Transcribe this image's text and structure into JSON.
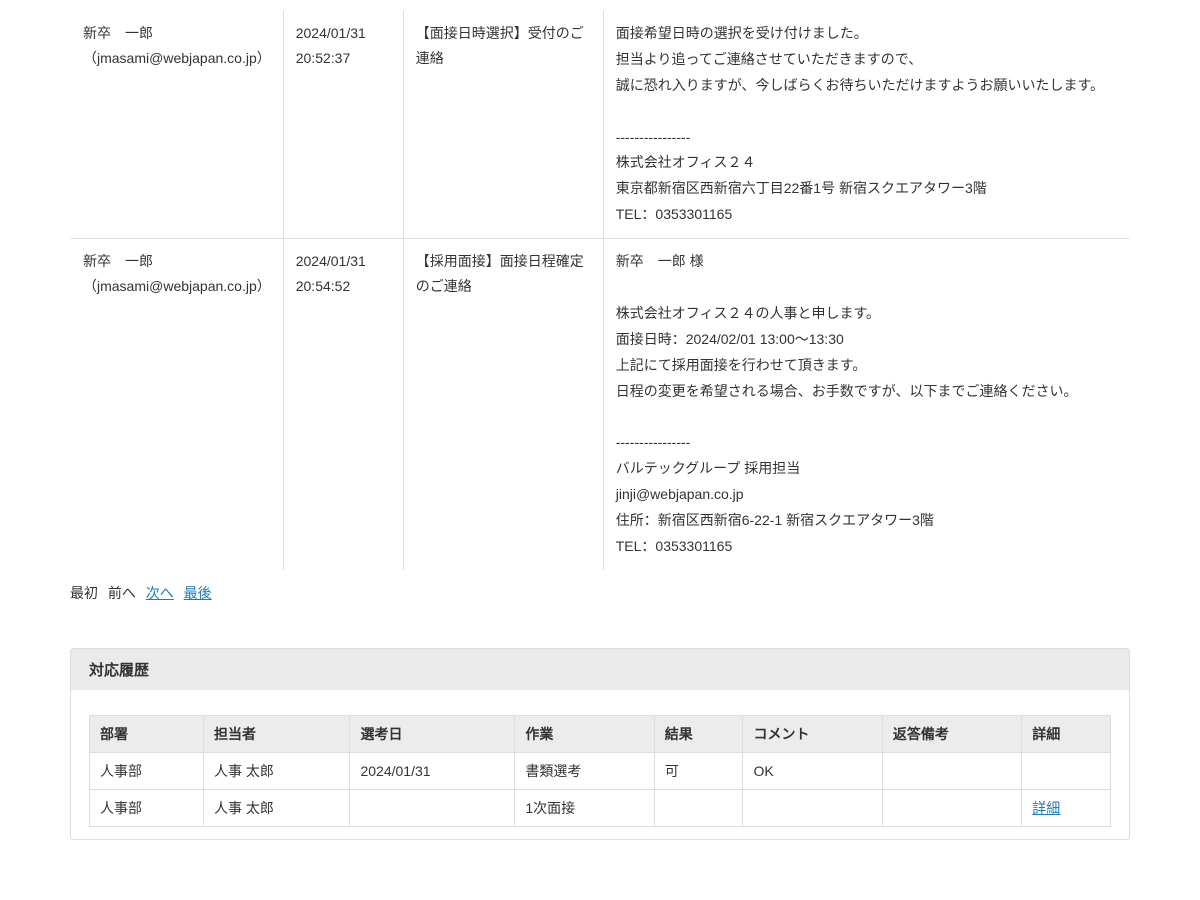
{
  "messages": [
    {
      "sender": "新卒　一郎（jmasami@webjapan.co.jp）",
      "datetime": "2024/01/31 20:52:37",
      "subject": "【面接日時選択】受付のご連絡",
      "body": "面接希望日時の選択を受け付けました。\n担当より追ってご連絡させていただきますので、\n誠に恐れ入りますが、今しばらくお待ちいただけますようお願いいたします。\n\n----------------\n株式会社オフィス２４\n東京都新宿区西新宿六丁目22番1号 新宿スクエアタワー3階\nTEL：0353301165"
    },
    {
      "sender": "新卒　一郎（jmasami@webjapan.co.jp）",
      "datetime": "2024/01/31 20:54:52",
      "subject": "【採用面接】面接日程確定のご連絡",
      "body": "新卒　一郎 様\n\n株式会社オフィス２４の人事と申します。\n面接日時：2024/02/01 13:00～13:30\n上記にて採用面接を行わせて頂きます。\n日程の変更を希望される場合、お手数ですが、以下までご連絡ください。\n\n----------------\nバルテックグループ 採用担当\njinji@webjapan.co.jp\n住所：新宿区西新宿6-22-1 新宿スクエアタワー3階\nTEL：0353301165"
    }
  ],
  "pagination": {
    "first": "最初",
    "prev": "前へ",
    "next": "次へ",
    "last": "最後"
  },
  "section": {
    "history_title": "対応履歴"
  },
  "history": {
    "columns": {
      "department": "部署",
      "person": "担当者",
      "date": "選考日",
      "task": "作業",
      "result": "結果",
      "comment": "コメント",
      "reply_note": "返答備考",
      "detail": "詳細"
    },
    "rows": [
      {
        "department": "人事部",
        "person": "人事 太郎",
        "date": "2024/01/31",
        "task": "書類選考",
        "result": "可",
        "comment": "OK",
        "reply_note": "",
        "detail": ""
      },
      {
        "department": "人事部",
        "person": "人事 太郎",
        "date": "",
        "task": "1次面接",
        "result": "",
        "comment": "",
        "reply_note": "",
        "detail": "詳細"
      }
    ]
  }
}
